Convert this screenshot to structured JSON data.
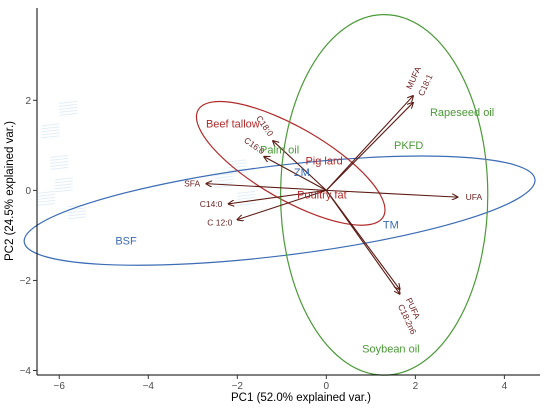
{
  "chart_data": {
    "type": "scatter",
    "xlabel": "PC1 (52.0% explained var.)",
    "ylabel": "PC2 (24.5% explained var.)",
    "xlim": [
      -6.5,
      4.8
    ],
    "ylim": [
      -4.1,
      4.05
    ],
    "x_ticks": [
      -6,
      -4,
      -2,
      0,
      2,
      4
    ],
    "y_ticks": [
      -4,
      -2,
      0,
      2
    ],
    "x_tick_labels": [
      "−6",
      "−4",
      "−2",
      "0",
      "2",
      "4"
    ],
    "y_tick_labels": [
      "−4",
      "−2",
      "0",
      "2"
    ],
    "grid": false,
    "colors": {
      "arrow": "#5c1a14",
      "variable_label": "#6b1f1f",
      "animal_fat_group": "#b22b2b",
      "insect_group": "#3b6cb5",
      "plant_oil_group": "#4a9a37"
    },
    "variables": [
      {
        "label": "MUFA",
        "x": 1.95,
        "y": 2.1
      },
      {
        "label": "C18:1",
        "x": 1.95,
        "y": 1.95
      },
      {
        "label": "UFA",
        "x": 2.95,
        "y": -0.15
      },
      {
        "label": "PUFA",
        "x": 1.65,
        "y": -2.2
      },
      {
        "label": "C18:2n6",
        "x": 1.65,
        "y": -2.3
      },
      {
        "label": "SFA",
        "x": -2.7,
        "y": 0.15
      },
      {
        "label": "C14:0",
        "x": -2.2,
        "y": -0.3
      },
      {
        "label": "C 12:0",
        "x": -2.0,
        "y": -0.65
      },
      {
        "label": "C18:0",
        "x": -1.2,
        "y": 1.1
      },
      {
        "label": "C16:0",
        "x": -1.4,
        "y": 0.75
      }
    ],
    "groups": [
      {
        "name": "BSF",
        "color": "#3b6cb5",
        "label_x": -4.5,
        "label_y": -1.2,
        "ellipse": {
          "cx": -1.05,
          "cy": -0.45,
          "rx": 5.78,
          "ry": 1.0,
          "angle_deg": 7
        }
      },
      {
        "name": "TM",
        "color": "#3b6cb5",
        "label_x": 1.45,
        "label_y": -0.85,
        "ellipse": null
      },
      {
        "name": "ZM",
        "color": "#3b6cb5",
        "label_x": -0.55,
        "label_y": 0.32,
        "ellipse": null
      },
      {
        "name": "Beef tallow",
        "color": "#b22b2b",
        "label_x": -2.1,
        "label_y": 1.4,
        "ellipse": null
      },
      {
        "name": "Palm oil",
        "color": "#4a9a37",
        "label_x": -1.05,
        "label_y": 0.82,
        "ellipse": null
      },
      {
        "name": "Pig lard",
        "color": "#b22b2b",
        "label_x": -0.05,
        "label_y": 0.57,
        "ellipse": null
      },
      {
        "name": "Poultry fat",
        "color": "#b22b2b",
        "label_x": -0.1,
        "label_y": -0.18,
        "ellipse": {
          "cx": -0.8,
          "cy": 0.6,
          "rx": 2.4,
          "ry": 0.8,
          "angle_deg": -30
        }
      },
      {
        "name": "PKFD",
        "color": "#4a9a37",
        "label_x": 1.85,
        "label_y": 0.92,
        "ellipse": null
      },
      {
        "name": "Rapeseed oil",
        "color": "#4a9a37",
        "label_x": 3.05,
        "label_y": 1.65,
        "ellipse": {
          "cx": 1.3,
          "cy": -0.1,
          "rx": 4.05,
          "ry": 2.3,
          "angle_deg": 90
        }
      },
      {
        "name": "Soybean oil",
        "color": "#4a9a37",
        "label_x": 1.45,
        "label_y": -3.6,
        "ellipse": null
      }
    ],
    "hatched_points": [
      {
        "x": -6.2,
        "y": 1.3
      },
      {
        "x": -6.0,
        "y": 0.6
      },
      {
        "x": -5.9,
        "y": 0.1
      },
      {
        "x": -5.6,
        "y": -0.5
      },
      {
        "x": -6.3,
        "y": -0.2
      },
      {
        "x": -5.8,
        "y": 1.8
      },
      {
        "x": -2.3,
        "y": 0.2
      },
      {
        "x": -1.8,
        "y": -0.2
      },
      {
        "x": -2.0,
        "y": 0.5
      }
    ]
  }
}
